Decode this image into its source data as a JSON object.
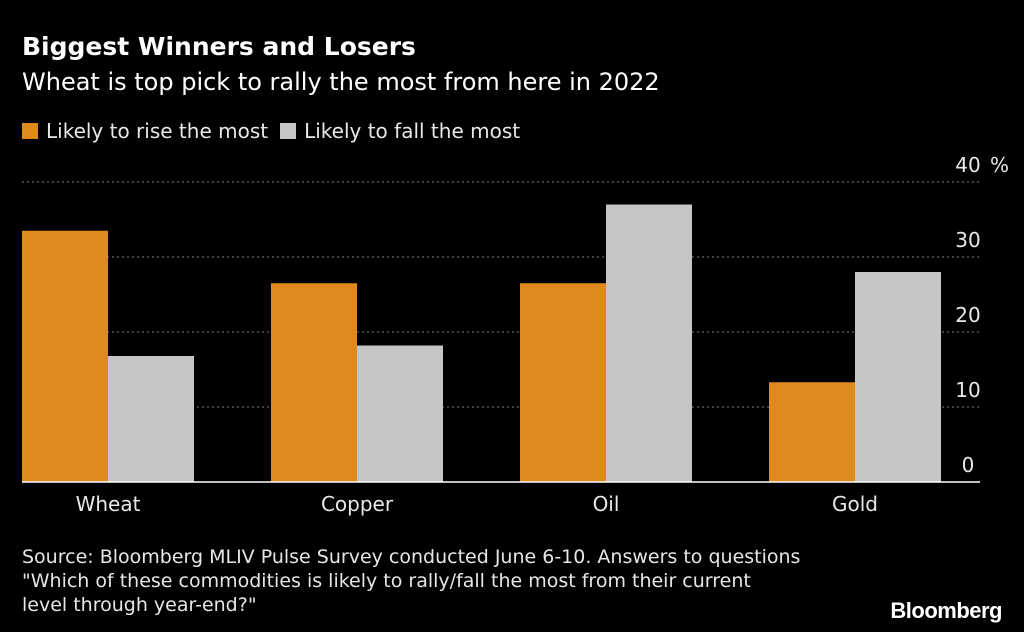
{
  "chart_data": {
    "type": "bar",
    "title": "Biggest Winners and Losers",
    "subtitle": "Wheat is top pick to rally the most from here in 2022",
    "categories": [
      "Wheat",
      "Copper",
      "Oil",
      "Gold"
    ],
    "series": [
      {
        "name": "Likely to rise the most",
        "color": "#e08a1e",
        "values": [
          33.5,
          26.5,
          26.5,
          13.3
        ]
      },
      {
        "name": "Likely to fall the most",
        "color": "#c6c6c6",
        "values": [
          16.8,
          18.2,
          37.0,
          28.0
        ]
      }
    ],
    "ylim": [
      0,
      40
    ],
    "yticks": [
      0,
      10,
      20,
      30,
      40
    ],
    "ytick_labels": [
      "0",
      "10",
      "20",
      "30",
      "40"
    ],
    "yunit": "%",
    "xlabel": "",
    "ylabel": "",
    "grid": true,
    "legend": "top-left"
  },
  "source": {
    "lines": [
      "Source: Bloomberg MLIV Pulse Survey conducted June 6-10. Answers to questions",
      "\"Which of these commodities is likely to rally/fall the most from their current",
      "level through year-end?\""
    ]
  },
  "brand": "Bloomberg",
  "colors": {
    "background": "#000000",
    "grid": "#666666",
    "axis": "#ffffff"
  }
}
